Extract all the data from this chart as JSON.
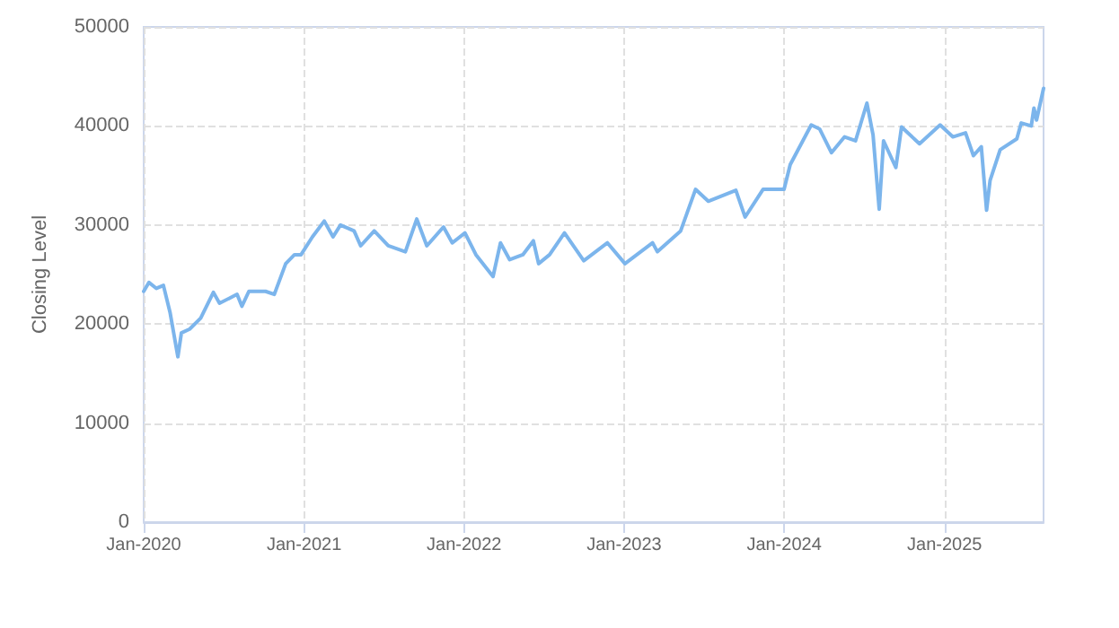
{
  "chart_data": {
    "type": "line",
    "ylabel": "Closing Level",
    "xlim": [
      "2020-01-01",
      "2025-08-15"
    ],
    "xticks": [
      {
        "value": "2020-01-01",
        "label": "Jan-2020"
      },
      {
        "value": "2021-01-01",
        "label": "Jan-2021"
      },
      {
        "value": "2022-01-01",
        "label": "Jan-2022"
      },
      {
        "value": "2023-01-01",
        "label": "Jan-2023"
      },
      {
        "value": "2024-01-01",
        "label": "Jan-2024"
      },
      {
        "value": "2025-01-01",
        "label": "Jan-2025"
      }
    ],
    "ylim": [
      0,
      50000
    ],
    "yticks": [
      0,
      10000,
      20000,
      30000,
      40000,
      50000
    ],
    "grid": true,
    "marker": "none",
    "line_style": "solid",
    "x": [
      "2020-01-01",
      "2020-01-13",
      "2020-01-30",
      "2020-02-15",
      "2020-03-01",
      "2020-03-19",
      "2020-03-27",
      "2020-04-15",
      "2020-05-10",
      "2020-06-08",
      "2020-06-22",
      "2020-08-01",
      "2020-08-12",
      "2020-08-28",
      "2020-10-05",
      "2020-10-25",
      "2020-11-20",
      "2020-12-10",
      "2020-12-25",
      "2021-01-20",
      "2021-02-16",
      "2021-03-08",
      "2021-03-25",
      "2021-04-25",
      "2021-05-10",
      "2021-06-10",
      "2021-07-12",
      "2021-08-20",
      "2021-09-15",
      "2021-10-08",
      "2021-11-15",
      "2021-12-05",
      "2022-01-03",
      "2022-01-28",
      "2022-03-08",
      "2022-03-25",
      "2022-04-15",
      "2022-05-15",
      "2022-06-08",
      "2022-06-20",
      "2022-07-15",
      "2022-08-18",
      "2022-10-01",
      "2022-11-24",
      "2023-01-03",
      "2023-03-07",
      "2023-03-18",
      "2023-05-10",
      "2023-06-13",
      "2023-07-12",
      "2023-09-13",
      "2023-10-04",
      "2023-11-14",
      "2024-01-01",
      "2024-01-15",
      "2024-03-03",
      "2024-03-22",
      "2024-04-18",
      "2024-05-18",
      "2024-06-12",
      "2024-07-08",
      "2024-07-22",
      "2024-08-05",
      "2024-08-15",
      "2024-09-12",
      "2024-09-25",
      "2024-11-05",
      "2024-12-22",
      "2025-01-20",
      "2025-02-18",
      "2025-03-08",
      "2025-03-26",
      "2025-04-07",
      "2025-04-15",
      "2025-05-08",
      "2025-06-15",
      "2025-06-25",
      "2025-07-18",
      "2025-07-24",
      "2025-07-30",
      "2025-08-15"
    ],
    "series": [
      {
        "color": "#7cb5ec",
        "values": [
          23300,
          24200,
          23600,
          23900,
          21200,
          16700,
          19100,
          19500,
          20600,
          23200,
          22100,
          23000,
          21800,
          23300,
          23300,
          23000,
          26100,
          27000,
          27000,
          28800,
          30400,
          28800,
          30000,
          29400,
          27900,
          29400,
          27900,
          27300,
          30600,
          27900,
          29800,
          28200,
          29200,
          27000,
          24800,
          28200,
          26500,
          27000,
          28400,
          26100,
          27000,
          29200,
          26400,
          28200,
          26100,
          28200,
          27300,
          29400,
          33600,
          32400,
          33500,
          30800,
          33600,
          33600,
          36100,
          40100,
          39700,
          37300,
          38900,
          38500,
          42300,
          39100,
          31600,
          38500,
          35800,
          39900,
          38200,
          40100,
          38900,
          39300,
          37000,
          37900,
          31500,
          34500,
          37600,
          38700,
          40300,
          40000,
          41800,
          40600,
          43800
        ]
      }
    ]
  }
}
